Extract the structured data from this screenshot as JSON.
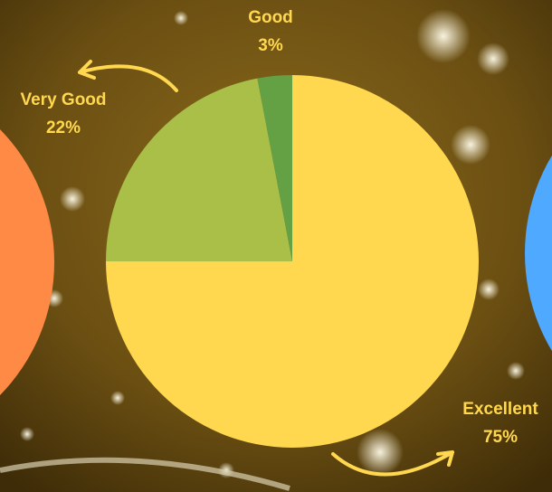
{
  "chart_data": {
    "type": "pie",
    "categories": [
      "Excellent",
      "Very Good",
      "Good"
    ],
    "values": [
      75,
      22,
      3
    ],
    "value_labels": [
      "75%",
      "22%",
      "3%"
    ],
    "colors": [
      "#ffd84f",
      "#a9bf48",
      "#64a044"
    ]
  }
}
